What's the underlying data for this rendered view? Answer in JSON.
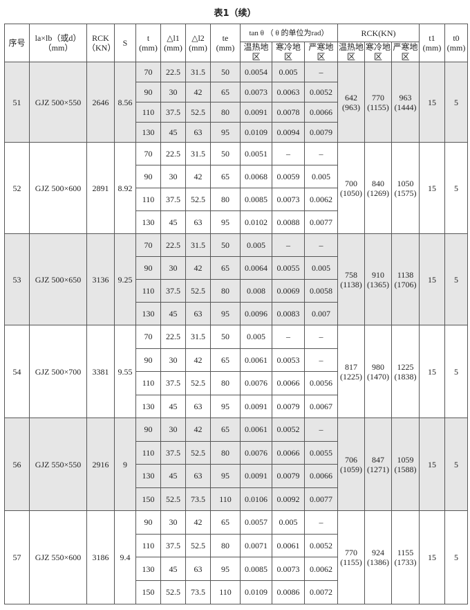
{
  "title": "表1（续）",
  "headers": {
    "no": "序号",
    "size": "la×lb（或d）",
    "size_unit": "（mm）",
    "rck": "RCK",
    "rck_unit": "（KN）",
    "s": "S",
    "t": "t",
    "t_unit": "(mm)",
    "dl1": "△l1",
    "dl1_unit": "(mm)",
    "dl2": "△l2",
    "dl2_unit": "(mm)",
    "te": "te",
    "te_unit": "(mm)",
    "tan": "tan θ （ θ 的单位为rad）",
    "rckg": "RCK(KN)",
    "warm": "温热地区",
    "cold": "寒冷地区",
    "severe": "严寒地区",
    "t1": "t1",
    "t1_unit": "(mm)",
    "t0": "t0",
    "t0_unit": "(mm)"
  },
  "groups": [
    {
      "no": "51",
      "size": "GJZ 500×550",
      "rck": "2646",
      "s": "8.56",
      "shaded": true,
      "r1": "642\n(963)",
      "r2": "770\n(1155)",
      "r3": "963\n(1444)",
      "t1": "15",
      "t0": "5",
      "rows": [
        [
          "70",
          "22.5",
          "31.5",
          "50",
          "0.0054",
          "0.005",
          "–"
        ],
        [
          "90",
          "30",
          "42",
          "65",
          "0.0073",
          "0.0063",
          "0.0052"
        ],
        [
          "110",
          "37.5",
          "52.5",
          "80",
          "0.0091",
          "0.0078",
          "0.0066"
        ],
        [
          "130",
          "45",
          "63",
          "95",
          "0.0109",
          "0.0094",
          "0.0079"
        ]
      ]
    },
    {
      "no": "52",
      "size": "GJZ 500×600",
      "rck": "2891",
      "s": "8.92",
      "shaded": false,
      "r1": "700\n(1050)",
      "r2": "840\n(1269)",
      "r3": "1050\n(1575)",
      "t1": "15",
      "t0": "5",
      "rows": [
        [
          "70",
          "22.5",
          "31.5",
          "50",
          "0.0051",
          "–",
          "–"
        ],
        [
          "90",
          "30",
          "42",
          "65",
          "0.0068",
          "0.0059",
          "0.005"
        ],
        [
          "110",
          "37.5",
          "52.5",
          "80",
          "0.0085",
          "0.0073",
          "0.0062"
        ],
        [
          "130",
          "45",
          "63",
          "95",
          "0.0102",
          "0.0088",
          "0.0077"
        ]
      ]
    },
    {
      "no": "53",
      "size": "GJZ 500×650",
      "rck": "3136",
      "s": "9.25",
      "shaded": true,
      "r1": "758\n(1138)",
      "r2": "910\n(1365)",
      "r3": "1138\n(1706)",
      "t1": "15",
      "t0": "5",
      "rows": [
        [
          "70",
          "22.5",
          "31.5",
          "50",
          "0.005",
          "–",
          "–"
        ],
        [
          "90",
          "30",
          "42",
          "65",
          "0.0064",
          "0.0055",
          "0.005"
        ],
        [
          "110",
          "37.5",
          "52.5",
          "80",
          "0.008",
          "0.0069",
          "0.0058"
        ],
        [
          "130",
          "45",
          "63",
          "95",
          "0.0096",
          "0.0083",
          "0.007"
        ]
      ]
    },
    {
      "no": "54",
      "size": "GJZ 500×700",
      "rck": "3381",
      "s": "9.55",
      "shaded": false,
      "r1": "817\n(1225)",
      "r2": "980\n(1470)",
      "r3": "1225\n(1838)",
      "t1": "15",
      "t0": "5",
      "rows": [
        [
          "70",
          "22.5",
          "31.5",
          "50",
          "0.005",
          "–",
          "–"
        ],
        [
          "90",
          "30",
          "42",
          "65",
          "0.0061",
          "0.0053",
          "–"
        ],
        [
          "110",
          "37.5",
          "52.5",
          "80",
          "0.0076",
          "0.0066",
          "0.0056"
        ],
        [
          "130",
          "45",
          "63",
          "95",
          "0.0091",
          "0.0079",
          "0.0067"
        ]
      ]
    },
    {
      "no": "56",
      "size": "GJZ 550×550",
      "rck": "2916",
      "s": "9",
      "shaded": true,
      "r1": "706\n(1059)",
      "r2": "847\n(1271)",
      "r3": "1059\n(1588)",
      "t1": "15",
      "t0": "5",
      "rows": [
        [
          "90",
          "30",
          "42",
          "65",
          "0.0061",
          "0.0052",
          "–"
        ],
        [
          "110",
          "37.5",
          "52.5",
          "80",
          "0.0076",
          "0.0066",
          "0.0055"
        ],
        [
          "130",
          "45",
          "63",
          "95",
          "0.0091",
          "0.0079",
          "0.0066"
        ],
        [
          "150",
          "52.5",
          "73.5",
          "110",
          "0.0106",
          "0.0092",
          "0.0077"
        ]
      ]
    },
    {
      "no": "57",
      "size": "GJZ 550×600",
      "rck": "3186",
      "s": "9.4",
      "shaded": false,
      "r1": "770\n(1155)",
      "r2": "924\n(1386)",
      "r3": "1155\n(1733)",
      "t1": "15",
      "t0": "5",
      "rows": [
        [
          "90",
          "30",
          "42",
          "65",
          "0.0057",
          "0.005",
          "–"
        ],
        [
          "110",
          "37.5",
          "52.5",
          "80",
          "0.0071",
          "0.0061",
          "0.0052"
        ],
        [
          "130",
          "45",
          "63",
          "95",
          "0.0085",
          "0.0073",
          "0.0062"
        ],
        [
          "150",
          "52.5",
          "73.5",
          "110",
          "0.0109",
          "0.0086",
          "0.0072"
        ]
      ]
    }
  ]
}
